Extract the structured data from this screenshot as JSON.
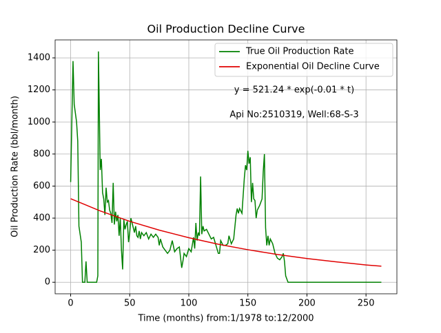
{
  "chart_data": {
    "type": "line",
    "title": "Oil Production Decline Curve",
    "x_label": "Time (months) from:1/1978 to:12/2000",
    "y_label": "Oil Production Rate (bbl/month)",
    "annotations": [
      "y = 521.24 * exp(-0.01 * t)",
      "Api No:2510319, Well:68-S-3"
    ],
    "xlim": [
      -13.15,
      276.15
    ],
    "ylim": [
      -72,
      1512
    ],
    "xticks": [
      0,
      50,
      100,
      150,
      200,
      250
    ],
    "yticks": [
      0,
      200,
      400,
      600,
      800,
      1000,
      1200,
      1400
    ],
    "grid": true,
    "legend": "upper right",
    "series": [
      {
        "name": "True Oil Production Rate",
        "color": "#008000",
        "x": [
          0,
          2,
          3,
          5,
          6,
          7,
          9,
          10,
          12,
          13,
          14,
          22,
          23,
          23.5,
          24,
          25,
          26,
          27,
          28,
          29,
          30,
          31,
          32,
          33,
          34,
          35,
          36,
          37,
          38,
          39,
          40,
          41,
          42,
          43,
          44,
          45,
          46,
          47,
          48,
          49,
          50,
          51,
          52,
          53,
          54,
          55,
          56,
          57,
          58,
          59,
          60,
          62,
          64,
          66,
          68,
          70,
          72,
          74,
          75,
          76,
          78,
          80,
          82,
          84,
          86,
          88,
          90,
          92,
          94,
          95,
          96,
          98,
          100,
          102,
          104,
          105,
          106,
          107,
          108,
          109,
          110,
          111,
          112,
          113,
          115,
          117,
          119,
          121,
          123,
          125,
          126,
          127,
          129,
          131,
          133,
          134,
          136,
          138,
          140,
          141,
          142,
          143,
          145,
          147,
          148,
          149,
          150,
          151,
          152,
          153,
          154,
          155,
          156,
          157,
          158,
          160,
          162,
          163,
          164,
          165,
          166,
          167,
          168,
          169,
          171,
          173,
          175,
          177,
          179,
          180,
          181,
          182,
          184,
          190,
          263
        ],
        "values": [
          625,
          1380,
          1110,
          1000,
          880,
          350,
          250,
          0,
          0,
          130,
          0,
          0,
          40,
          1440,
          1200,
          700,
          770,
          560,
          520,
          420,
          590,
          500,
          510,
          450,
          430,
          370,
          620,
          360,
          440,
          380,
          420,
          290,
          400,
          200,
          80,
          390,
          330,
          360,
          380,
          250,
          310,
          400,
          370,
          340,
          310,
          350,
          290,
          280,
          320,
          270,
          310,
          290,
          310,
          270,
          300,
          280,
          300,
          280,
          230,
          270,
          220,
          200,
          180,
          200,
          260,
          190,
          210,
          220,
          90,
          130,
          180,
          160,
          210,
          190,
          280,
          210,
          370,
          260,
          310,
          290,
          660,
          300,
          350,
          320,
          330,
          300,
          270,
          280,
          230,
          180,
          180,
          260,
          230,
          230,
          240,
          290,
          240,
          270,
          420,
          460,
          430,
          460,
          430,
          650,
          730,
          700,
          820,
          740,
          780,
          500,
          620,
          520,
          510,
          400,
          450,
          480,
          520,
          690,
          800,
          340,
          230,
          290,
          230,
          270,
          240,
          180,
          150,
          140,
          160,
          180,
          130,
          40,
          0,
          0,
          0
        ]
      },
      {
        "name": "Exponential Oil Decline Curve",
        "color": "#e00000",
        "x": [
          0,
          25,
          50,
          75,
          100,
          125,
          150,
          175,
          200,
          225,
          250,
          263
        ],
        "values": [
          521,
          445,
          380,
          325,
          278,
          237,
          203,
          173,
          148,
          127,
          108,
          100
        ]
      }
    ]
  }
}
